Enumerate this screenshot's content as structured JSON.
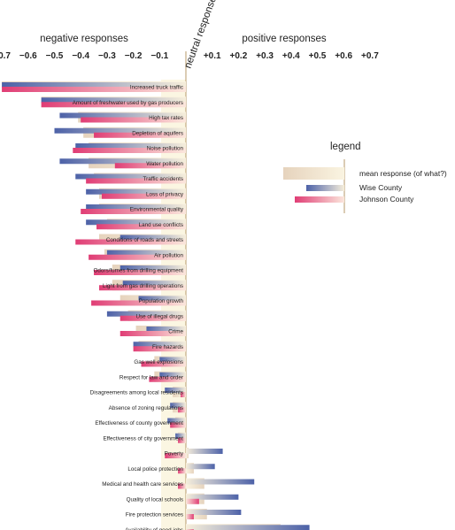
{
  "chart_data": {
    "type": "bar",
    "orientation": "horizontal",
    "header_negative": "negative responses",
    "header_positive": "positive responses",
    "neutral_label": "neutral response",
    "xlim": [
      -0.7,
      0.7
    ],
    "tick_values": [
      -0.7,
      -0.6,
      -0.5,
      -0.4,
      -0.3,
      -0.2,
      -0.1,
      0.1,
      0.2,
      0.3,
      0.4,
      0.5,
      0.6,
      0.7
    ],
    "tick_labels": [
      "−0.7",
      "−0.6",
      "−0.5",
      "−0.4",
      "−0.3",
      "−0.2",
      "−0.1",
      "+0.1",
      "+0.2",
      "+0.3",
      "+0.4",
      "+0.5",
      "+0.6",
      "+0.7"
    ],
    "categories": [
      "Increased truck traffic",
      "Amount of freshwater used by gas producers",
      "High tax rates",
      "Depletion of aquifers",
      "Noise pollution",
      "Water pollution",
      "Traffic accidents",
      "Loss of privacy",
      "Environmental quality",
      "Land use conflicts",
      "Conditions of roads and streets",
      "Air pollution",
      "Odors/fumes from drilling equipment",
      "Light from gas drilling operations",
      "Population growth",
      "Use of illegal drugs",
      "Crime",
      "Fire hazards",
      "Gas well explosions",
      "Respect for law and order",
      "Disagreements among local residents",
      "Absence of zoning regulations",
      "Effectiveness of county government",
      "Effectiveness of city government",
      "Poverty",
      "Local police protection",
      "Medical and health care services",
      "Quality of local schools",
      "Fire protection services",
      "Availability of good jobs"
    ],
    "series": [
      {
        "name": "mean response  (of what?)",
        "values": [
          -0.7,
          -0.55,
          -0.41,
          -0.39,
          -0.37,
          -0.37,
          -0.35,
          -0.33,
          -0.33,
          -0.3,
          -0.33,
          -0.31,
          -0.28,
          -0.28,
          -0.25,
          -0.22,
          -0.19,
          -0.18,
          -0.12,
          -0.12,
          -0.05,
          -0.05,
          -0.04,
          -0.03,
          0.01,
          0.03,
          0.07,
          0.07,
          0.08,
          0.36
        ]
      },
      {
        "name": "Wise County",
        "values": [
          -0.7,
          -0.55,
          -0.48,
          -0.5,
          -0.42,
          -0.48,
          -0.42,
          -0.38,
          -0.38,
          -0.38,
          -0.25,
          -0.3,
          -0.25,
          -0.24,
          -0.18,
          -0.3,
          -0.15,
          -0.2,
          -0.1,
          -0.1,
          -0.08,
          -0.06,
          -0.07,
          -0.04,
          0.14,
          0.11,
          0.26,
          0.2,
          0.21,
          0.47
        ]
      },
      {
        "name": "Johnson County",
        "values": [
          -0.7,
          -0.55,
          -0.4,
          -0.35,
          -0.43,
          -0.27,
          -0.38,
          -0.32,
          -0.4,
          -0.34,
          -0.42,
          -0.37,
          -0.35,
          -0.33,
          -0.36,
          -0.25,
          -0.25,
          -0.2,
          -0.17,
          -0.14,
          -0.02,
          -0.03,
          -0.06,
          -0.03,
          -0.08,
          -0.03,
          -0.03,
          0.05,
          0.03,
          0.03
        ]
      }
    ],
    "legend_title": "legend",
    "legend_position": "right"
  },
  "colors": {
    "mean": "#ead9c4",
    "wise": "#5a6fb0",
    "johnson": "#e0457a",
    "neutral_fill": "#fbf6e2",
    "neutral_line": "#b79a6a"
  }
}
